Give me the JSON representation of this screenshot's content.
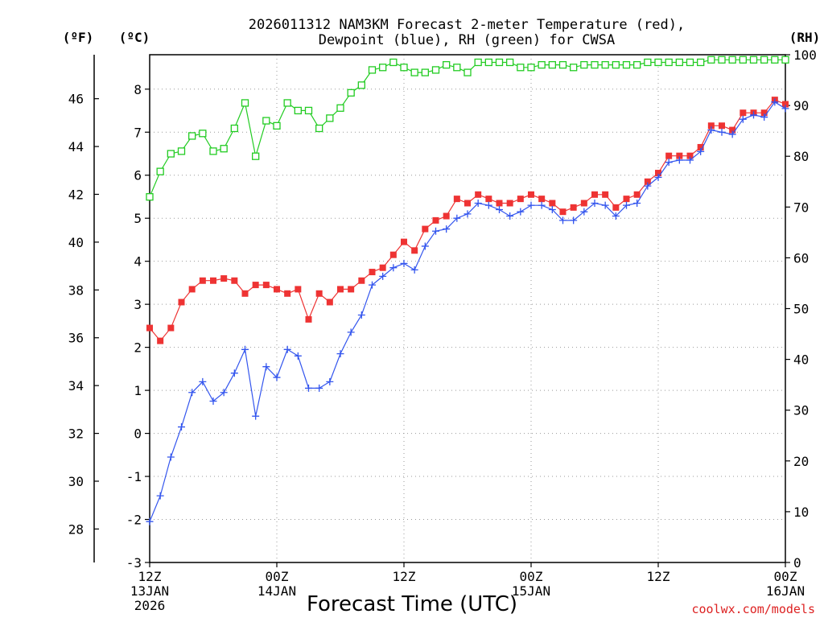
{
  "chart_data": {
    "type": "line",
    "title_line1": "2026011312 NAM3KM Forecast 2-meter Temperature (red),",
    "title_line2": "Dewpoint (blue), RH (green) for CWSA",
    "left_unit_f": "(ºF)",
    "left_unit_c": "(ºC)",
    "right_unit": "(RH)",
    "xlabel": "Forecast Time (UTC)",
    "credit": "coolwx.com/models",
    "xlim": [
      0,
      60
    ],
    "ylim_c": [
      -3,
      8.8
    ],
    "ylim_rh": [
      0,
      100
    ],
    "ylim_f": [
      26.6,
      47.84
    ],
    "celsius_ticks": [
      "-3",
      "-2",
      "-1",
      "0",
      "1",
      "2",
      "3",
      "4",
      "5",
      "6",
      "7",
      "8"
    ],
    "fahrenheit_ticks": [
      "28",
      "30",
      "32",
      "34",
      "36",
      "38",
      "40",
      "42",
      "44",
      "46"
    ],
    "rh_ticks": [
      "0",
      "10",
      "20",
      "30",
      "40",
      "50",
      "60",
      "70",
      "80",
      "90",
      "100"
    ],
    "x_ticks": [
      {
        "hour": 0,
        "lines": [
          "12Z",
          "13JAN",
          "2026"
        ]
      },
      {
        "hour": 12,
        "lines": [
          "00Z",
          "14JAN"
        ]
      },
      {
        "hour": 24,
        "lines": [
          "12Z",
          ""
        ]
      },
      {
        "hour": 36,
        "lines": [
          "00Z",
          "15JAN"
        ]
      },
      {
        "hour": 48,
        "lines": [
          "12Z",
          ""
        ]
      },
      {
        "hour": 60,
        "lines": [
          "00Z",
          "16JAN"
        ]
      }
    ],
    "series": [
      {
        "name": "2-meter Temperature (°C)",
        "color": "#ee3333",
        "marker": "filled-square",
        "axis": "celsius",
        "x": [
          0,
          1,
          2,
          3,
          4,
          5,
          6,
          7,
          8,
          9,
          10,
          11,
          12,
          13,
          14,
          15,
          16,
          17,
          18,
          19,
          20,
          21,
          22,
          23,
          24,
          25,
          26,
          27,
          28,
          29,
          30,
          31,
          32,
          33,
          34,
          35,
          36,
          37,
          38,
          39,
          40,
          41,
          42,
          43,
          44,
          45,
          46,
          47,
          48,
          49,
          50,
          51,
          52,
          53,
          54,
          55,
          56,
          57,
          58,
          59,
          60
        ],
        "values": [
          2.45,
          2.15,
          2.45,
          3.05,
          3.35,
          3.55,
          3.55,
          3.6,
          3.55,
          3.25,
          3.45,
          3.45,
          3.35,
          3.25,
          3.35,
          2.65,
          3.25,
          3.05,
          3.35,
          3.35,
          3.55,
          3.75,
          3.85,
          4.15,
          4.45,
          4.25,
          4.75,
          4.95,
          5.05,
          5.45,
          5.35,
          5.55,
          5.45,
          5.35,
          5.35,
          5.45,
          5.55,
          5.45,
          5.35,
          5.15,
          5.25,
          5.35,
          5.55,
          5.55,
          5.25,
          5.45,
          5.55,
          5.85,
          6.05,
          6.45,
          6.45,
          6.45,
          6.65,
          7.15,
          7.15,
          7.05,
          7.45,
          7.45,
          7.45,
          7.75,
          7.65
        ]
      },
      {
        "name": "Dewpoint (°C)",
        "color": "#3355ee",
        "marker": "plus",
        "axis": "celsius",
        "x": [
          0,
          1,
          2,
          3,
          4,
          5,
          6,
          7,
          8,
          9,
          10,
          11,
          12,
          13,
          14,
          15,
          16,
          17,
          18,
          19,
          20,
          21,
          22,
          23,
          24,
          25,
          26,
          27,
          28,
          29,
          30,
          31,
          32,
          33,
          34,
          35,
          36,
          37,
          38,
          39,
          40,
          41,
          42,
          43,
          44,
          45,
          46,
          47,
          48,
          49,
          50,
          51,
          52,
          53,
          54,
          55,
          56,
          57,
          58,
          59,
          60
        ],
        "values": [
          -2.05,
          -1.45,
          -0.55,
          0.15,
          0.95,
          1.2,
          0.75,
          0.95,
          1.4,
          1.95,
          0.4,
          1.55,
          1.3,
          1.95,
          1.8,
          1.05,
          1.05,
          1.2,
          1.85,
          2.35,
          2.75,
          3.45,
          3.65,
          3.85,
          3.95,
          3.8,
          4.35,
          4.7,
          4.75,
          5.0,
          5.1,
          5.35,
          5.3,
          5.2,
          5.05,
          5.15,
          5.3,
          5.3,
          5.2,
          4.95,
          4.95,
          5.15,
          5.35,
          5.3,
          5.05,
          5.3,
          5.35,
          5.75,
          5.95,
          6.3,
          6.35,
          6.35,
          6.55,
          7.05,
          7.0,
          6.95,
          7.3,
          7.4,
          7.35,
          7.7,
          7.55
        ]
      },
      {
        "name": "Relative Humidity (%)",
        "color": "#22cc22",
        "marker": "open-square",
        "axis": "rh",
        "x": [
          0,
          1,
          2,
          3,
          4,
          5,
          6,
          7,
          8,
          9,
          10,
          11,
          12,
          13,
          14,
          15,
          16,
          17,
          18,
          19,
          20,
          21,
          22,
          23,
          24,
          25,
          26,
          27,
          28,
          29,
          30,
          31,
          32,
          33,
          34,
          35,
          36,
          37,
          38,
          39,
          40,
          41,
          42,
          43,
          44,
          45,
          46,
          47,
          48,
          49,
          50,
          51,
          52,
          53,
          54,
          55,
          56,
          57,
          58,
          59,
          60
        ],
        "values": [
          72,
          77,
          80.5,
          81,
          84,
          84.5,
          81,
          81.5,
          85.5,
          90.5,
          80,
          87,
          86,
          90.5,
          89,
          89,
          85.5,
          87.5,
          89.5,
          92.5,
          94,
          97,
          97.5,
          98.5,
          97.5,
          96.5,
          96.5,
          97,
          98,
          97.5,
          96.5,
          98.5,
          98.5,
          98.5,
          98.5,
          97.5,
          97.5,
          98,
          98,
          98,
          97.5,
          98,
          98,
          98,
          98,
          98,
          98,
          98.5,
          98.5,
          98.5,
          98.5,
          98.5,
          98.5,
          99,
          99,
          99,
          99,
          99,
          99,
          99,
          99
        ]
      }
    ]
  }
}
